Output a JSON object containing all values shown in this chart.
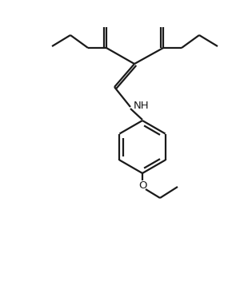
{
  "bg_color": "#ffffff",
  "line_color": "#1a1a1a",
  "line_width": 1.6,
  "font_size": 9.5,
  "figsize": [
    2.85,
    3.52
  ],
  "dpi": 100,
  "nh_text": "NH",
  "o_text": "O"
}
